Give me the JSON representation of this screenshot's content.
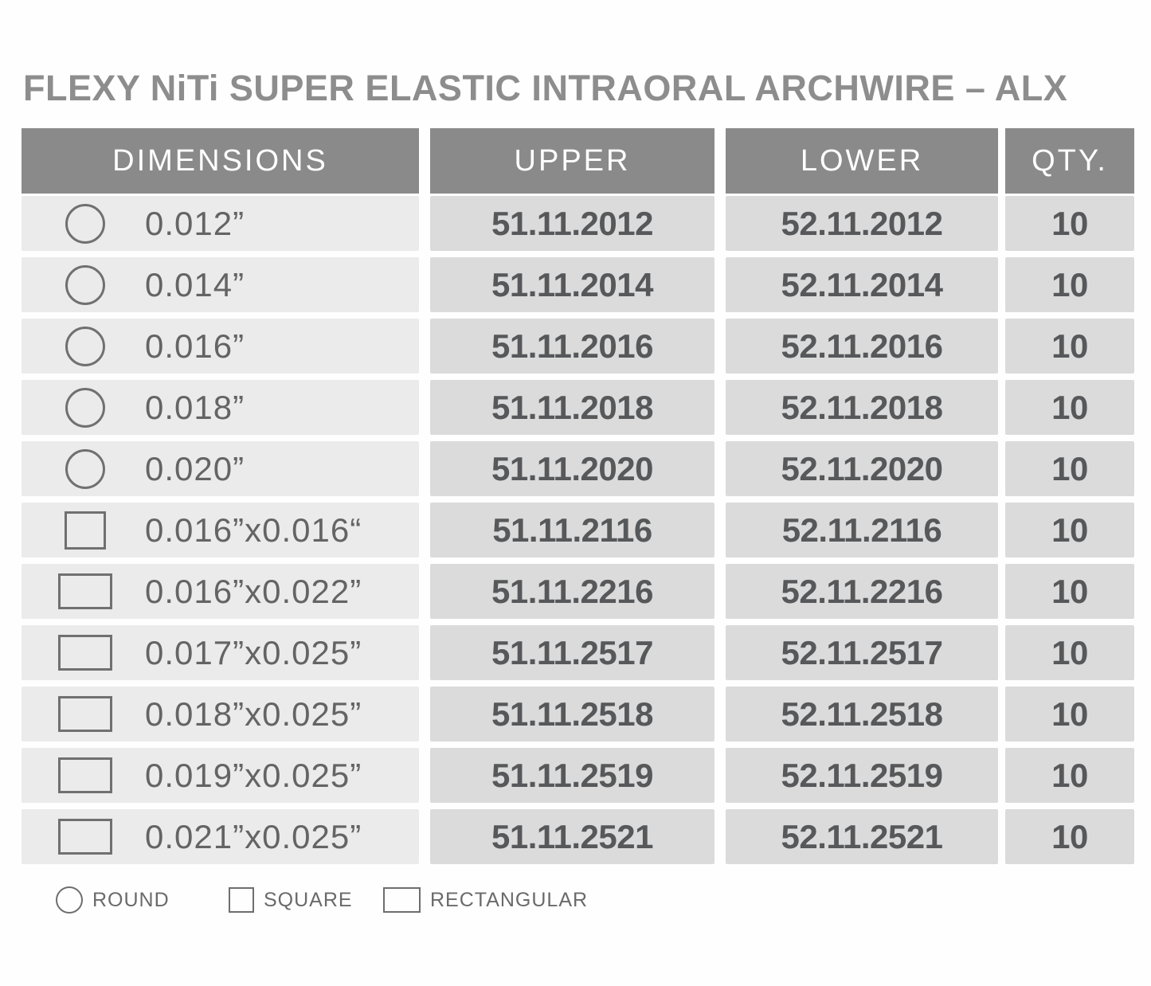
{
  "title": "FLEXY NiTi SUPER ELASTIC INTRAORAL ARCHWIRE – ALX",
  "table": {
    "headers": [
      "DIMENSIONS",
      "UPPER",
      "LOWER",
      "QTY."
    ],
    "rows": [
      {
        "shape": "round",
        "dimension": "0.012”",
        "upper": "51.11.2012",
        "lower": "52.11.2012",
        "qty": "10"
      },
      {
        "shape": "round",
        "dimension": "0.014”",
        "upper": "51.11.2014",
        "lower": "52.11.2014",
        "qty": "10"
      },
      {
        "shape": "round",
        "dimension": "0.016”",
        "upper": "51.11.2016",
        "lower": "52.11.2016",
        "qty": "10"
      },
      {
        "shape": "round",
        "dimension": "0.018”",
        "upper": "51.11.2018",
        "lower": "52.11.2018",
        "qty": "10"
      },
      {
        "shape": "round",
        "dimension": "0.020”",
        "upper": "51.11.2020",
        "lower": "52.11.2020",
        "qty": "10"
      },
      {
        "shape": "square",
        "dimension": "0.016”x0.016“",
        "upper": "51.11.2116",
        "lower": "52.11.2116",
        "qty": "10"
      },
      {
        "shape": "rectangular",
        "dimension": "0.016”x0.022”",
        "upper": "51.11.2216",
        "lower": "52.11.2216",
        "qty": "10"
      },
      {
        "shape": "rectangular",
        "dimension": "0.017”x0.025”",
        "upper": "51.11.2517",
        "lower": "52.11.2517",
        "qty": "10"
      },
      {
        "shape": "rectangular",
        "dimension": "0.018”x0.025”",
        "upper": "51.11.2518",
        "lower": "52.11.2518",
        "qty": "10"
      },
      {
        "shape": "rectangular",
        "dimension": "0.019”x0.025”",
        "upper": "51.11.2519",
        "lower": "52.11.2519",
        "qty": "10"
      },
      {
        "shape": "rectangular",
        "dimension": "0.021”x0.025”",
        "upper": "51.11.2521",
        "lower": "52.11.2521",
        "qty": "10"
      }
    ]
  },
  "legend": {
    "items": [
      {
        "shape": "round",
        "label": "ROUND"
      },
      {
        "shape": "square",
        "label": "SQUARE"
      },
      {
        "shape": "rectangular",
        "label": "RECTANGULAR"
      }
    ]
  },
  "colors": {
    "header_bg": "#8a8a8a",
    "header_text": "#ffffff",
    "dimension_cell_bg": "#ebebeb",
    "value_cell_bg": "#dbdbdb",
    "value_text": "#57585a",
    "dimension_text": "#646464",
    "icon_stroke": "#707070",
    "title_text": "#8d8d8d",
    "legend_text": "#6a6a6a"
  }
}
